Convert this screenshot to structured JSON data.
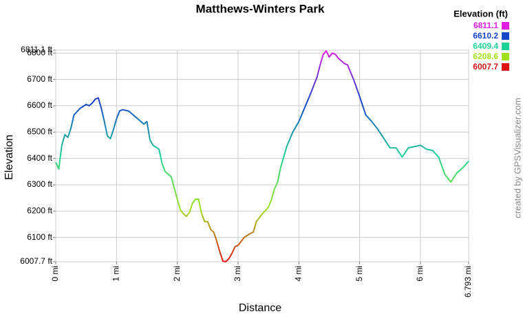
{
  "chart_data": {
    "type": "line",
    "title": "Matthews-Winters Park",
    "x_label": "Distance",
    "y_label": "Elevation",
    "credit": "created by GPSVisualizer.com",
    "xlim": [
      0,
      6.793
    ],
    "ylim": [
      6007.7,
      6811.1
    ],
    "xticks": [
      {
        "value": 0,
        "label": "0 mi"
      },
      {
        "value": 1,
        "label": "1 mi"
      },
      {
        "value": 2,
        "label": "2 mi"
      },
      {
        "value": 3,
        "label": "3 mi"
      },
      {
        "value": 4,
        "label": "4 mi"
      },
      {
        "value": 5,
        "label": "5 mi"
      },
      {
        "value": 6,
        "label": "6 mi"
      },
      {
        "value": 6.793,
        "label": "6.793 mi"
      }
    ],
    "yticks": [
      {
        "value": 6007.7,
        "label": "6007.7 ft"
      },
      {
        "value": 6100,
        "label": "6100 ft"
      },
      {
        "value": 6200,
        "label": "6200 ft"
      },
      {
        "value": 6300,
        "label": "6300 ft"
      },
      {
        "value": 6400,
        "label": "6400 ft"
      },
      {
        "value": 6500,
        "label": "6500 ft"
      },
      {
        "value": 6600,
        "label": "6600 ft"
      },
      {
        "value": 6700,
        "label": "6700 ft"
      },
      {
        "value": 6800,
        "label": "6800 ft"
      },
      {
        "value": 6811.1,
        "label": "6811.1 ft"
      }
    ],
    "grid": true,
    "color_scale": {
      "title": "Elevation (ft)",
      "stops": [
        {
          "value": 6811.1,
          "color": "#e01ee0"
        },
        {
          "value": 6610.2,
          "color": "#1446c8"
        },
        {
          "value": 6409.4,
          "color": "#1ed296"
        },
        {
          "value": 6208.6,
          "color": "#a0e01e"
        },
        {
          "value": 6007.7,
          "color": "#dc1414"
        }
      ]
    },
    "x": [
      0,
      0.05,
      0.1,
      0.15,
      0.2,
      0.25,
      0.3,
      0.4,
      0.5,
      0.55,
      0.6,
      0.65,
      0.7,
      0.75,
      0.8,
      0.85,
      0.9,
      0.95,
      1.0,
      1.05,
      1.1,
      1.2,
      1.3,
      1.4,
      1.45,
      1.5,
      1.55,
      1.6,
      1.7,
      1.75,
      1.8,
      1.9,
      2.0,
      2.05,
      2.1,
      2.15,
      2.2,
      2.25,
      2.3,
      2.35,
      2.4,
      2.45,
      2.5,
      2.55,
      2.6,
      2.65,
      2.7,
      2.75,
      2.8,
      2.85,
      2.9,
      2.95,
      3.0,
      3.1,
      3.2,
      3.25,
      3.3,
      3.4,
      3.5,
      3.55,
      3.6,
      3.65,
      3.7,
      3.75,
      3.8,
      3.9,
      4.0,
      4.1,
      4.2,
      4.3,
      4.35,
      4.4,
      4.45,
      4.5,
      4.55,
      4.6,
      4.65,
      4.7,
      4.75,
      4.8,
      4.9,
      5.0,
      5.05,
      5.1,
      5.2,
      5.3,
      5.4,
      5.5,
      5.6,
      5.7,
      5.8,
      5.9,
      6.0,
      6.1,
      6.2,
      6.3,
      6.4,
      6.5,
      6.6,
      6.7,
      6.793
    ],
    "values": [
      6385,
      6360,
      6450,
      6490,
      6480,
      6515,
      6565,
      6590,
      6605,
      6600,
      6610,
      6625,
      6630,
      6590,
      6540,
      6485,
      6475,
      6510,
      6550,
      6580,
      6585,
      6580,
      6560,
      6540,
      6530,
      6540,
      6470,
      6450,
      6435,
      6380,
      6350,
      6330,
      6245,
      6205,
      6190,
      6180,
      6195,
      6230,
      6245,
      6245,
      6190,
      6160,
      6160,
      6130,
      6120,
      6085,
      6045,
      6010,
      6008,
      6020,
      6040,
      6065,
      6070,
      6100,
      6115,
      6120,
      6160,
      6190,
      6215,
      6245,
      6285,
      6310,
      6365,
      6405,
      6445,
      6500,
      6540,
      6595,
      6650,
      6710,
      6755,
      6795,
      6808,
      6785,
      6800,
      6795,
      6780,
      6770,
      6760,
      6755,
      6700,
      6635,
      6600,
      6565,
      6540,
      6510,
      6475,
      6440,
      6440,
      6405,
      6440,
      6445,
      6450,
      6435,
      6430,
      6405,
      6340,
      6310,
      6345,
      6365,
      6390
    ]
  }
}
